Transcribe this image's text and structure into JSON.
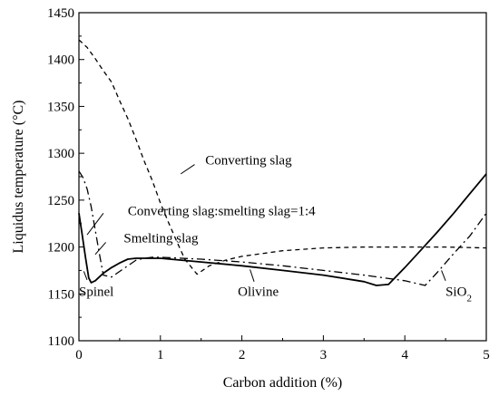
{
  "chart_data": {
    "type": "line",
    "title": "",
    "xlabel": "Carbon addition (%)",
    "ylabel": "Liquidus temperature (°C)",
    "xlim": [
      0,
      5
    ],
    "ylim": [
      1100,
      1450
    ],
    "xticks": [
      0,
      1,
      2,
      3,
      4,
      5
    ],
    "yticks": [
      1100,
      1150,
      1200,
      1250,
      1300,
      1350,
      1400,
      1450
    ],
    "grid": false,
    "legend": "none",
    "series": [
      {
        "name": "Converting slag",
        "style": "dashed",
        "points": [
          [
            0.0,
            1421
          ],
          [
            0.1,
            1413
          ],
          [
            0.2,
            1401
          ],
          [
            0.3,
            1388
          ],
          [
            0.4,
            1376
          ],
          [
            0.5,
            1356
          ],
          [
            0.6,
            1337
          ],
          [
            0.7,
            1315
          ],
          [
            0.8,
            1292
          ],
          [
            0.9,
            1271
          ],
          [
            1.0,
            1247
          ],
          [
            1.1,
            1226
          ],
          [
            1.2,
            1206
          ],
          [
            1.3,
            1187
          ],
          [
            1.45,
            1171
          ],
          [
            1.6,
            1180
          ],
          [
            1.8,
            1186
          ],
          [
            2.0,
            1190
          ],
          [
            2.5,
            1196
          ],
          [
            3.0,
            1199
          ],
          [
            3.5,
            1200
          ],
          [
            4.0,
            1200
          ],
          [
            4.5,
            1200
          ],
          [
            5.0,
            1199
          ]
        ]
      },
      {
        "name": "Converting slag:smelting slag=1:4",
        "style": "dash-dot",
        "points": [
          [
            0.0,
            1281
          ],
          [
            0.05,
            1274
          ],
          [
            0.1,
            1262
          ],
          [
            0.15,
            1243
          ],
          [
            0.2,
            1218
          ],
          [
            0.25,
            1193
          ],
          [
            0.3,
            1170
          ],
          [
            0.4,
            1168
          ],
          [
            0.5,
            1174
          ],
          [
            0.6,
            1180
          ],
          [
            0.7,
            1186
          ],
          [
            0.8,
            1188
          ],
          [
            0.9,
            1189
          ],
          [
            1.0,
            1189
          ],
          [
            1.5,
            1187
          ],
          [
            2.0,
            1184
          ],
          [
            2.5,
            1180
          ],
          [
            3.0,
            1175
          ],
          [
            3.5,
            1170
          ],
          [
            4.0,
            1164
          ],
          [
            4.25,
            1159
          ],
          [
            4.4,
            1173
          ],
          [
            4.6,
            1193
          ],
          [
            4.8,
            1212
          ],
          [
            5.0,
            1236
          ]
        ]
      },
      {
        "name": "Smelting slag",
        "style": "solid",
        "points": [
          [
            0.0,
            1236
          ],
          [
            0.04,
            1213
          ],
          [
            0.08,
            1189
          ],
          [
            0.12,
            1167
          ],
          [
            0.15,
            1162
          ],
          [
            0.2,
            1164
          ],
          [
            0.3,
            1172
          ],
          [
            0.4,
            1178
          ],
          [
            0.5,
            1183
          ],
          [
            0.6,
            1187
          ],
          [
            0.7,
            1188
          ],
          [
            0.8,
            1188
          ],
          [
            0.9,
            1188
          ],
          [
            1.0,
            1188
          ],
          [
            1.5,
            1184
          ],
          [
            2.0,
            1180
          ],
          [
            2.5,
            1175
          ],
          [
            3.0,
            1170
          ],
          [
            3.5,
            1163
          ],
          [
            3.65,
            1159
          ],
          [
            3.8,
            1160
          ],
          [
            4.0,
            1178
          ],
          [
            4.2,
            1197
          ],
          [
            4.4,
            1216
          ],
          [
            4.6,
            1236
          ],
          [
            4.8,
            1257
          ],
          [
            5.0,
            1278
          ]
        ]
      }
    ],
    "annotations": [
      {
        "key": "converting",
        "text": "Converting slag",
        "x": 1.55,
        "y": 1288
      },
      {
        "key": "mixed",
        "text": "Converting slag:smelting slag=1:4",
        "x": 0.6,
        "y": 1234
      },
      {
        "key": "smelting",
        "text": "Smelting slag",
        "x": 0.55,
        "y": 1205
      },
      {
        "key": "spinel",
        "text": "Spinel",
        "x": 0.0,
        "y": 1148
      },
      {
        "key": "olivine",
        "text": "Olivine",
        "x": 1.95,
        "y": 1148
      },
      {
        "key": "sio2",
        "text": "SiO2",
        "x": 4.5,
        "y": 1148
      }
    ],
    "leaders": [
      {
        "from": [
          1.42,
          1288
        ],
        "to": [
          1.25,
          1278
        ]
      },
      {
        "from": [
          0.3,
          1236
        ],
        "to": [
          0.1,
          1213
        ]
      },
      {
        "from": [
          0.33,
          1205
        ],
        "to": [
          0.2,
          1192
        ]
      },
      {
        "from": [
          0.1,
          1165
        ],
        "to": [
          0.06,
          1174
        ]
      },
      {
        "from": [
          2.15,
          1163
        ],
        "to": [
          2.1,
          1176
        ]
      },
      {
        "from": [
          4.5,
          1164
        ],
        "to": [
          4.45,
          1175
        ]
      }
    ]
  }
}
